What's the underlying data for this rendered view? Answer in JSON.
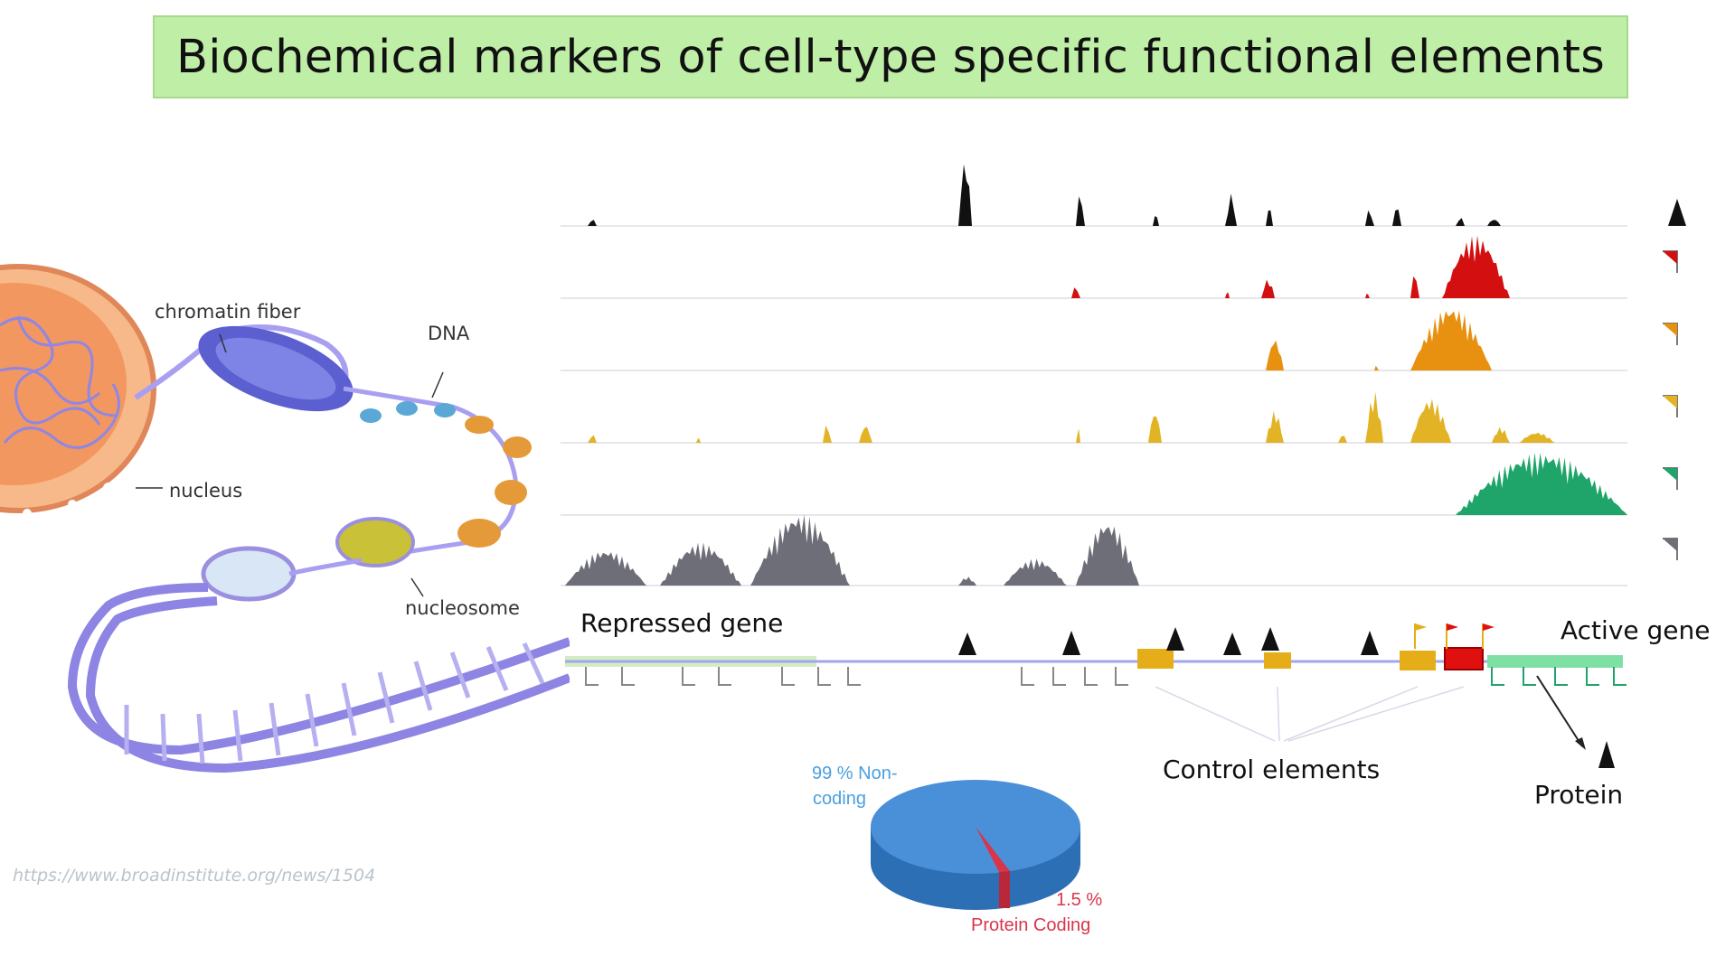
{
  "title": "Biochemical markers of cell-type specific functional elements",
  "cell_labels": {
    "chromatin_fiber": "chromatin fiber",
    "dna": "DNA",
    "nucleus": "nucleus",
    "nucleosome": "nucleosome"
  },
  "gene_labels": {
    "repressed": "Repressed gene",
    "active": "Active gene",
    "control": "Control elements",
    "protein": "Protein"
  },
  "pie": {
    "noncoding_line1": "99 % Non-",
    "noncoding_line2": "coding",
    "coding_pct": "1.5 %",
    "coding_label": "Protein Coding",
    "noncoding_color": "#4a90d9",
    "coding_color": "#d9354a"
  },
  "source_url": "https://www.broadinstitute.org/news/1504",
  "track_colors": [
    "#111111",
    "#d40f0f",
    "#e8900f",
    "#e2b324",
    "#1fa56a",
    "#6e6e78"
  ]
}
